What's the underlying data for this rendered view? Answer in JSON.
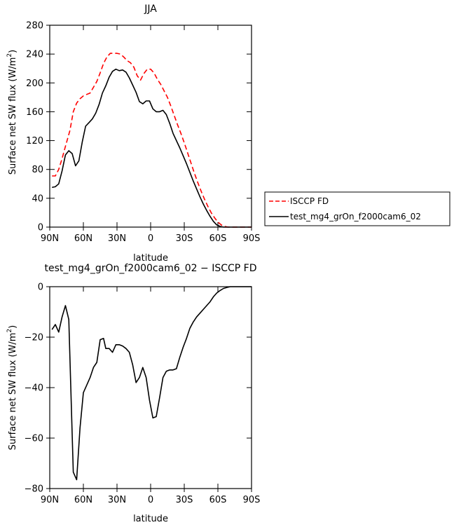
{
  "chart_data": [
    {
      "type": "line",
      "title": "JJA",
      "xlabel": "latitude",
      "ylabel": "Surface net SW flux (W/m²)",
      "ylabel_parts": [
        "Surface net SW flux (W/m",
        "2",
        ")"
      ],
      "x_ticks": [
        90,
        60,
        30,
        0,
        -30,
        -60,
        -90
      ],
      "x_tick_labels": [
        "90N",
        "60N",
        "30N",
        "0",
        "30S",
        "60S",
        "90S"
      ],
      "xlim": [
        90,
        -90
      ],
      "ylim": [
        0,
        280
      ],
      "y_ticks": [
        0,
        40,
        80,
        120,
        160,
        200,
        240,
        280
      ],
      "y_tick_labels": [
        "0",
        "40",
        "80",
        "120",
        "160",
        "200",
        "240",
        "280"
      ],
      "legend": {
        "placement": "right",
        "entries": [
          {
            "label": "ISCCP FD",
            "color": "#ff0000",
            "dash": true
          },
          {
            "label": "test_mg4_grOn_f2000cam6_02",
            "color": "#000000",
            "dash": false
          }
        ]
      },
      "series": [
        {
          "name": "ISCCP FD",
          "color": "#ff0000",
          "style": "dashed",
          "x": [
            88,
            85,
            82,
            79,
            76,
            72,
            69,
            66,
            63,
            60,
            57,
            54,
            51,
            48,
            45,
            42,
            39,
            36,
            33,
            30,
            27,
            24,
            21,
            18,
            15,
            12,
            9,
            6,
            3,
            0,
            -3,
            -6,
            -9,
            -12,
            -15,
            -18,
            -21,
            -24,
            -27,
            -30,
            -33,
            -36,
            -39,
            -42,
            -45,
            -48,
            -51,
            -54,
            -57,
            -60,
            -63,
            -66,
            -69,
            -72,
            -75,
            -78,
            -81,
            -84,
            -87,
            -90
          ],
          "y": [
            71,
            71,
            80,
            95,
            112,
            134,
            160,
            172,
            178,
            182,
            184,
            186,
            194,
            202,
            214,
            227,
            236,
            241,
            241,
            241,
            240,
            236,
            231,
            228,
            222,
            210,
            204,
            213,
            219,
            219,
            214,
            205,
            198,
            189,
            180,
            168,
            155,
            142,
            130,
            117,
            103,
            89,
            75,
            62,
            50,
            39,
            29,
            20,
            13,
            7,
            3,
            1,
            0,
            0,
            0,
            0,
            0,
            0,
            0,
            0
          ]
        },
        {
          "name": "test_mg4_grOn_f2000cam6_02",
          "color": "#000000",
          "style": "solid",
          "x": [
            88,
            85,
            82,
            79,
            76,
            73,
            70,
            67,
            64,
            61,
            58,
            55,
            52,
            49,
            46,
            43,
            40,
            37,
            34,
            31,
            28,
            25,
            22,
            19,
            16,
            13,
            10,
            7,
            4,
            1,
            -2,
            -5,
            -8,
            -11,
            -14,
            -17,
            -20,
            -23,
            -26,
            -29,
            -32,
            -35,
            -38,
            -41,
            -44,
            -47,
            -50,
            -53,
            -56,
            -59,
            -62,
            -65,
            -68,
            -71,
            -74,
            -77,
            -80,
            -83,
            -86,
            -90
          ],
          "y": [
            55,
            56,
            60,
            78,
            100,
            106,
            102,
            85,
            92,
            118,
            140,
            145,
            150,
            158,
            170,
            186,
            196,
            208,
            216,
            219,
            217,
            218,
            215,
            207,
            197,
            187,
            174,
            171,
            175,
            175,
            164,
            160,
            160,
            162,
            156,
            144,
            130,
            120,
            110,
            99,
            88,
            76,
            64,
            53,
            42,
            32,
            23,
            15,
            8,
            3,
            1,
            0,
            0,
            0,
            0,
            0,
            0,
            0,
            0,
            0
          ]
        }
      ]
    },
    {
      "type": "line",
      "title": "test_mg4_grOn_f2000cam6_02 − ISCCP FD",
      "xlabel": "latitude",
      "ylabel": "Surface net SW flux (W/m²)",
      "ylabel_parts": [
        "Surface net SW flux (W/m",
        "2",
        ")"
      ],
      "x_ticks": [
        90,
        60,
        30,
        0,
        -30,
        -60,
        -90
      ],
      "x_tick_labels": [
        "90N",
        "60N",
        "30N",
        "0",
        "30S",
        "60S",
        "90S"
      ],
      "xlim": [
        90,
        -90
      ],
      "ylim": [
        -80,
        0
      ],
      "y_ticks": [
        -80,
        -60,
        -40,
        -20,
        0
      ],
      "y_tick_labels": [
        "−80",
        "−60",
        "−40",
        "−20",
        "0"
      ],
      "series": [
        {
          "name": "test_mg4_grOn_f2000cam6_02 − ISCCP FD",
          "color": "#000000",
          "style": "solid",
          "x": [
            88,
            85,
            82,
            79,
            76,
            73,
            69,
            66,
            63,
            60,
            57,
            54,
            51,
            48,
            45,
            42,
            40,
            37,
            34,
            31,
            28,
            25,
            22,
            19,
            16,
            13,
            10,
            7,
            4,
            1,
            -2,
            -5,
            -8,
            -11,
            -14,
            -17,
            -20,
            -23,
            -26,
            -29,
            -32,
            -35,
            -38,
            -41,
            -44,
            -47,
            -50,
            -53,
            -56,
            -59,
            -62,
            -65,
            -68,
            -71,
            -74,
            -77,
            -80,
            -83,
            -86,
            -90
          ],
          "y": [
            -17,
            -15,
            -18,
            -12,
            -7.5,
            -13,
            -73.5,
            -76.5,
            -56,
            -42,
            -39,
            -36,
            -32,
            -30,
            -21,
            -20.5,
            -24.5,
            -24.5,
            -26,
            -23,
            -23,
            -23.5,
            -24.5,
            -26,
            -31,
            -38,
            -36,
            -32,
            -36,
            -45,
            -52,
            -51.5,
            -44,
            -36,
            -33.5,
            -33,
            -33,
            -32.5,
            -28,
            -24,
            -20.5,
            -16.5,
            -14,
            -12,
            -10.5,
            -9,
            -7.5,
            -6,
            -4,
            -2.5,
            -1.5,
            -0.7,
            -0.3,
            0,
            0,
            0,
            0,
            0,
            0,
            0
          ]
        }
      ]
    }
  ]
}
